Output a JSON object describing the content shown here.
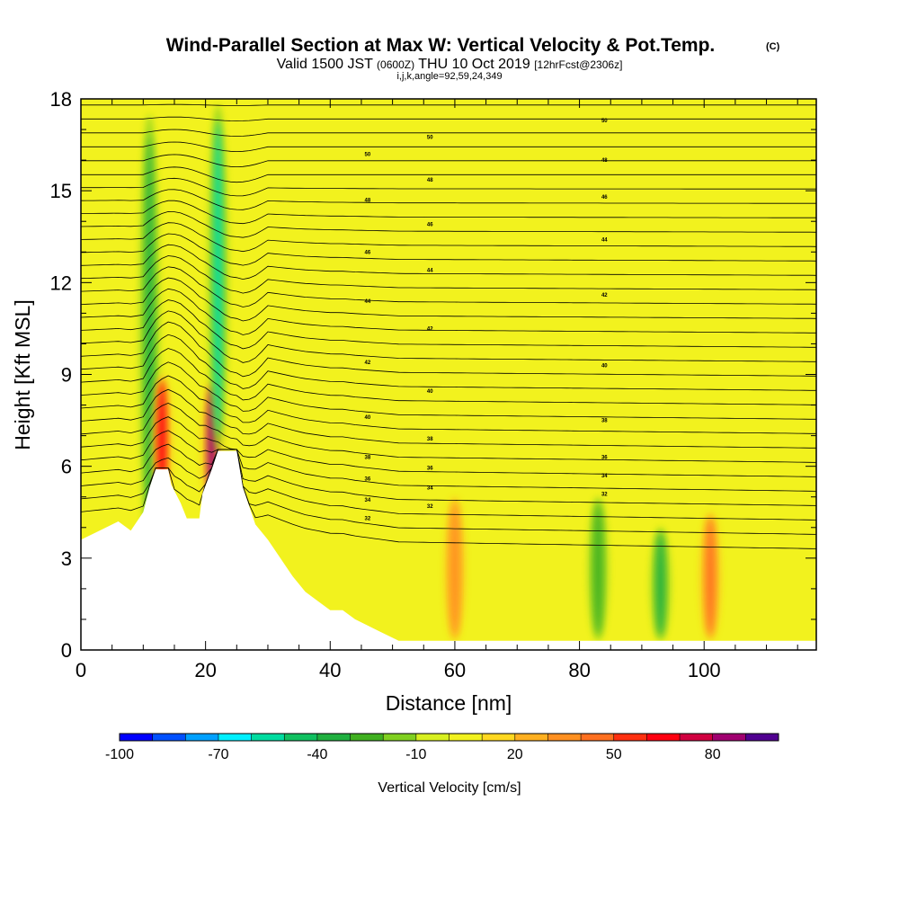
{
  "titles": {
    "main": "Wind-Parallel Section at Max W: Vertical Velocity & Pot.Temp.",
    "copyright": "(C)",
    "valid_prefix": "Valid 1500 JST",
    "valid_utc": "(0600Z)",
    "valid_date": "THU 10 Oct 2019",
    "forecast": "[12hrFcst@2306z]",
    "indices": "i,j,k,angle=92,59,24,349"
  },
  "colors": {
    "background_field": "#f2f21e",
    "terrain": "#ffffff",
    "contour": "#000000"
  },
  "chart_data": {
    "type": "heatmap",
    "xlabel": "Distance [nm]",
    "ylabel": "Height [Kft MSL]",
    "xlim": [
      0,
      118
    ],
    "ylim": [
      0,
      18
    ],
    "x_ticks": [
      0,
      20,
      40,
      60,
      80,
      100
    ],
    "y_ticks": [
      0,
      3,
      6,
      9,
      12,
      15,
      18
    ],
    "terrain_profile": [
      [
        0,
        3.6
      ],
      [
        3,
        3.9
      ],
      [
        6,
        4.2
      ],
      [
        8,
        3.9
      ],
      [
        10,
        4.5
      ],
      [
        11,
        5.3
      ],
      [
        12,
        5.9
      ],
      [
        14,
        5.9
      ],
      [
        14.5,
        5.4
      ],
      [
        16,
        4.8
      ],
      [
        17,
        4.3
      ],
      [
        19,
        4.3
      ],
      [
        19.5,
        5.1
      ],
      [
        21,
        5.9
      ],
      [
        22,
        6.5
      ],
      [
        25,
        6.5
      ],
      [
        26,
        5.3
      ],
      [
        28,
        4.1
      ],
      [
        30,
        3.6
      ],
      [
        32,
        3.0
      ],
      [
        34,
        2.4
      ],
      [
        36,
        1.9
      ],
      [
        38,
        1.6
      ],
      [
        40,
        1.3
      ],
      [
        42,
        1.3
      ],
      [
        44,
        1.0
      ],
      [
        46,
        0.8
      ],
      [
        48,
        0.6
      ],
      [
        50,
        0.4
      ],
      [
        51,
        0.3
      ],
      [
        118,
        0.3
      ]
    ],
    "theta_contours": [
      {
        "label": "32",
        "h0": 4.3,
        "h1": 5.1
      },
      {
        "label": "34",
        "h0": 4.9,
        "h1": 5.7
      },
      {
        "label": "36",
        "h0": 5.6,
        "h1": 6.3
      },
      {
        "label": "38",
        "h0": 6.3,
        "h1": 7.5
      },
      {
        "label": "40",
        "h0": 7.6,
        "h1": 9.3
      },
      {
        "label": "42",
        "h0": 9.4,
        "h1": 11.6
      },
      {
        "label": "44",
        "h0": 11.4,
        "h1": 13.4
      },
      {
        "label": "46",
        "h0": 13.0,
        "h1": 14.8
      },
      {
        "label": "48",
        "h0": 14.7,
        "h1": 16.0
      },
      {
        "label": "50",
        "h0": 16.2,
        "h1": 17.3
      }
    ],
    "colorbar": {
      "label": "Vertical Velocity [cm/s]",
      "tick_labels": [
        "-100",
        "-70",
        "-40",
        "-10",
        "20",
        "50",
        "80"
      ],
      "levels": [
        -100,
        -90,
        -80,
        -70,
        -60,
        -50,
        -40,
        -30,
        -20,
        -10,
        0,
        10,
        20,
        30,
        40,
        50,
        60,
        70,
        80,
        90
      ],
      "colors": [
        "#0000ff",
        "#0050ff",
        "#00a0ff",
        "#00f0ff",
        "#00dca0",
        "#10c060",
        "#20b040",
        "#40b020",
        "#80d020",
        "#d8f020",
        "#f2f21e",
        "#ffd820",
        "#ffb020",
        "#ff9020",
        "#ff7020",
        "#ff3010",
        "#ff0010",
        "#d00040",
        "#a00070",
        "#500090"
      ]
    },
    "velocity_features": [
      {
        "x": 11,
        "h0": 3.2,
        "h1": 17.5,
        "value": -40
      },
      {
        "x": 13,
        "h0": 4.5,
        "h1": 9.0,
        "value": 60
      },
      {
        "x": 21,
        "h0": 4.5,
        "h1": 8.8,
        "value": 80
      },
      {
        "x": 22,
        "h0": 6.5,
        "h1": 17.8,
        "value": -60
      },
      {
        "x": 60,
        "h0": 0.3,
        "h1": 5.0,
        "value": 30
      },
      {
        "x": 83,
        "h0": 0.3,
        "h1": 5.0,
        "value": -30
      },
      {
        "x": 93,
        "h0": 0.3,
        "h1": 4.0,
        "value": -40
      },
      {
        "x": 101,
        "h0": 0.3,
        "h1": 4.5,
        "value": 40
      }
    ]
  }
}
